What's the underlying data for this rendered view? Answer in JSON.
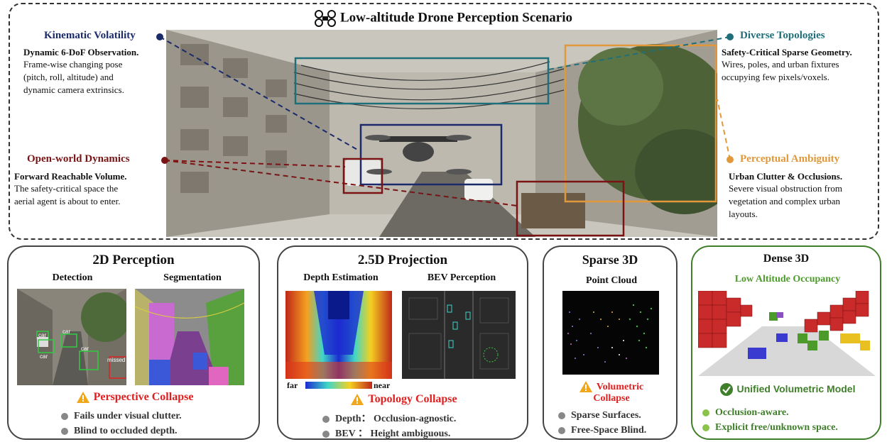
{
  "header": {
    "title": "Low-altitude Drone Perception Scenario",
    "icon": "drone-icon"
  },
  "callouts": {
    "kinematic": {
      "title": "Kinematic Volatility",
      "subtitle": "Dynamic 6-DoF Observation.",
      "lines": [
        "Frame-wise changing pose",
        "(pitch, roll, altitude) and",
        "dynamic camera extrinsics."
      ],
      "color": "#1b2a6b"
    },
    "open_world": {
      "title": "Open-world Dynamics",
      "subtitle": "Forward Reachable Volume.",
      "lines": [
        "The safety-critical space the",
        "aerial agent is about to enter."
      ],
      "color": "#7a1414"
    },
    "diverse": {
      "title": "Diverse Topologies",
      "subtitle": "Safety-Critical Sparse Geometry.",
      "lines": [
        "Wires, poles, and urban fixtures",
        "occupying few pixels/voxels."
      ],
      "color": "#1f6f7a"
    },
    "ambiguity": {
      "title": "Perceptual Ambiguity",
      "subtitle": "Urban Clutter & Occlusions.",
      "lines": [
        "Severe visual obstruction from",
        "vegetation and complex urban",
        "layouts."
      ],
      "color": "#e0983a"
    }
  },
  "panels": {
    "p2d": {
      "title": "2D Perception",
      "sub_left": "Detection",
      "sub_right": "Segmentation",
      "det_labels": [
        "car",
        "car",
        "car",
        "car",
        "missed"
      ],
      "collapse": "Perspective Collapse",
      "bullets": [
        "Fails under visual clutter.",
        "Blind to occluded depth."
      ]
    },
    "p25d": {
      "title": "2.5D Projection",
      "sub_left": "Depth Estimation",
      "sub_right": "BEV Perception",
      "far": "far",
      "near": "near",
      "collapse": "Topology Collapse",
      "bullets": [
        "Depth： Occlusion-agnostic.",
        "BEV ： Height ambiguous."
      ]
    },
    "p3ds": {
      "title": "Sparse 3D",
      "sub": "Point Cloud",
      "collapse_1": "Volumetric",
      "collapse_2": "Collapse",
      "bullets": [
        "Sparse Surfaces.",
        "Free-Space Blind."
      ]
    },
    "p3dd": {
      "title": "Dense 3D",
      "sub": "Low Altitude Occupancy",
      "unified": "Unified Volumetric Model",
      "bullets": [
        "Occlusion-aware.",
        "Explicit free/unknown space."
      ],
      "accent": "#3f7f2a"
    }
  }
}
